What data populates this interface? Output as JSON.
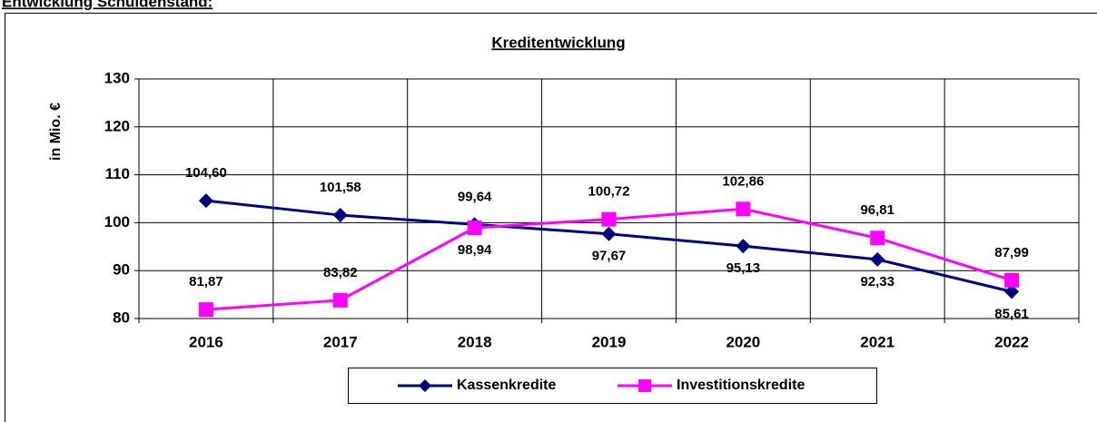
{
  "header": {
    "title": "Entwicklung Schuldenstand:"
  },
  "chart_data": {
    "type": "line",
    "title": "Kreditentwicklung",
    "y_label": "in Mio. €",
    "categories": [
      "2016",
      "2017",
      "2018",
      "2019",
      "2020",
      "2021",
      "2022"
    ],
    "series": [
      {
        "name": "Kassenkredite",
        "color": "#000080",
        "marker": "diamond",
        "values": [
          104.6,
          101.58,
          99.64,
          97.67,
          95.13,
          92.33,
          85.61
        ],
        "value_labels": [
          "104,60",
          "101,58",
          "99,64",
          "97,67",
          "95,13",
          "92,33",
          "85,61"
        ]
      },
      {
        "name": "Investitionskredite",
        "color": "#ff00ff",
        "marker": "square",
        "values": [
          81.87,
          83.82,
          98.94,
          100.72,
          102.86,
          96.81,
          87.99
        ],
        "value_labels": [
          "81,87",
          "83,82",
          "98,94",
          "100,72",
          "102,86",
          "96,81",
          "87,99"
        ]
      }
    ],
    "ylim": [
      80,
      130
    ],
    "yticks": [
      80,
      90,
      100,
      110,
      120,
      130
    ],
    "grid": true,
    "legend": "bottom"
  }
}
